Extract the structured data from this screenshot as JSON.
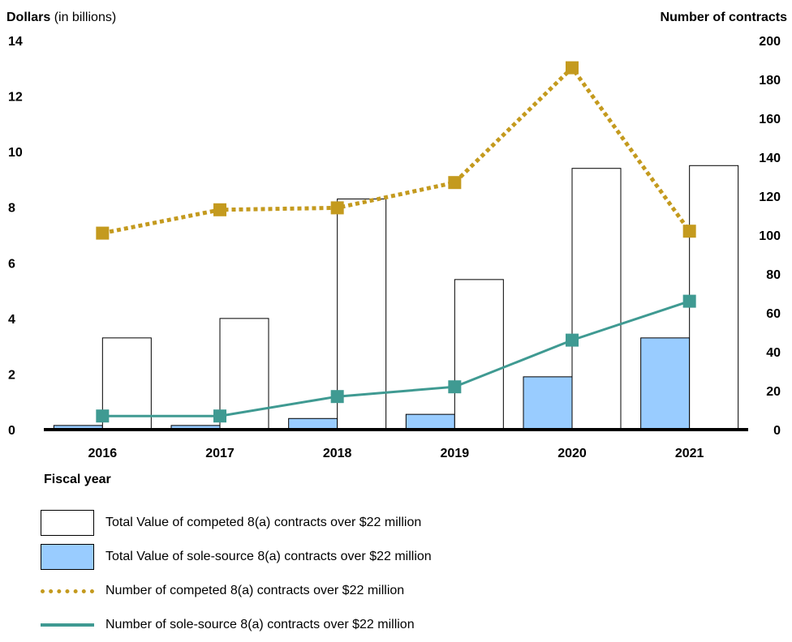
{
  "chart_data": {
    "type": "bar",
    "left_axis_title_bold": "Dollars",
    "left_axis_title_normal": " (in billions)",
    "right_axis_title": "Number of contracts",
    "xlabel": "Fiscal year",
    "categories": [
      "2016",
      "2017",
      "2018",
      "2019",
      "2020",
      "2021"
    ],
    "y_left": {
      "min": 0,
      "max": 14,
      "ticks": [
        0,
        2,
        4,
        6,
        8,
        10,
        12,
        14
      ]
    },
    "y_right": {
      "min": 0,
      "max": 200,
      "ticks": [
        0,
        20,
        40,
        60,
        80,
        100,
        120,
        140,
        160,
        180,
        200
      ]
    },
    "series": [
      {
        "name": "Total Value of competed 8(a) contracts over $22 million",
        "kind": "bar",
        "axis": "left",
        "values": [
          3.3,
          4.0,
          8.3,
          5.4,
          9.4,
          9.5
        ],
        "color": "#ffffff"
      },
      {
        "name": "Total Value of sole-source 8(a) contracts over $22 million",
        "kind": "bar",
        "axis": "left",
        "values": [
          0.15,
          0.15,
          0.4,
          0.55,
          1.9,
          3.3
        ],
        "color": "#99ccff"
      },
      {
        "name": "Number of competed 8(a) contracts over $22 million",
        "kind": "line",
        "style": "dotted",
        "axis": "right",
        "values": [
          101,
          113,
          114,
          127,
          186,
          102
        ],
        "color": "#c49a1e"
      },
      {
        "name": "Number of sole-source 8(a) contracts over $22 million",
        "kind": "line",
        "style": "solid",
        "axis": "right",
        "values": [
          7,
          7,
          17,
          22,
          46,
          66
        ],
        "color": "#3f9a92"
      }
    ]
  }
}
